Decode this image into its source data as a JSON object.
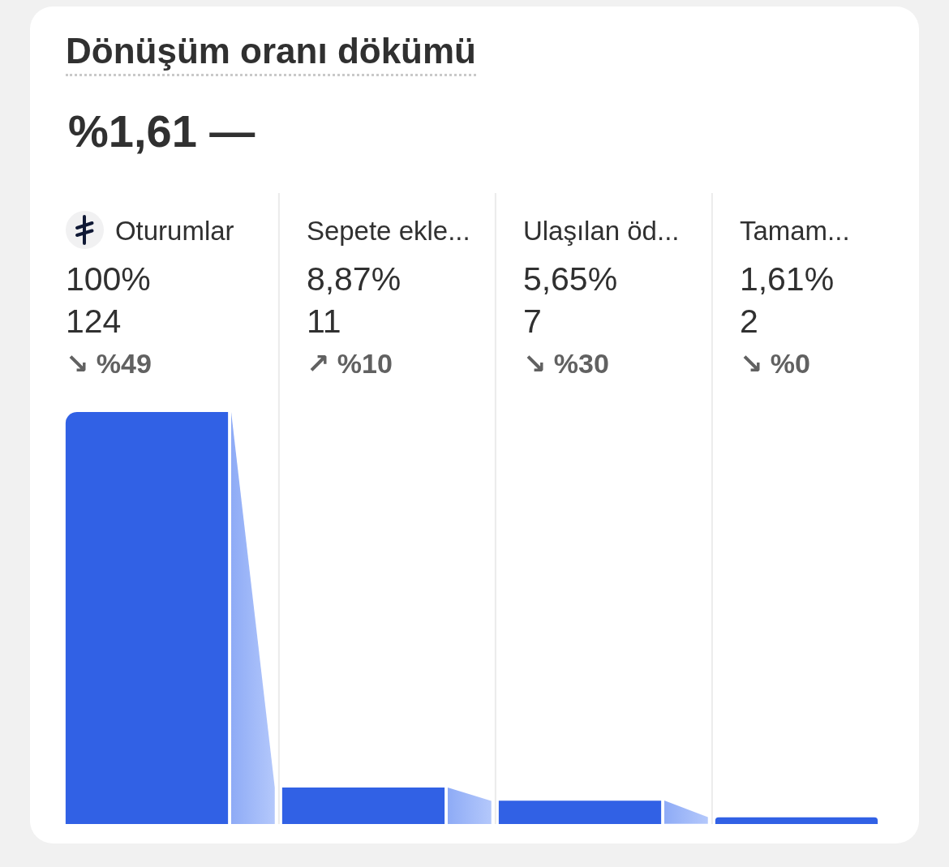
{
  "chart_data": {
    "type": "bar",
    "title": "Dönüşüm oranı dökümü",
    "subtitle": "%1,61 —",
    "categories": [
      "Oturumlar",
      "Sepete ekle...",
      "Ulaşılan öd...",
      "Tamam..."
    ],
    "values": [
      124,
      11,
      7,
      2
    ],
    "color": "#3161e5",
    "data_labels": true,
    "grid": "x",
    "tick_labels": "x",
    "annotations": [
      "100%",
      "8,87%",
      "5,65%",
      "1,61%",
      "↘ %49",
      "↗ %10",
      "↘ %30",
      "↘ %0"
    ]
  }
}
